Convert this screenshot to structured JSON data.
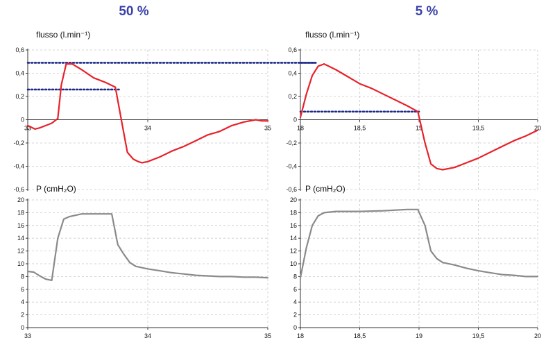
{
  "chart_data": [
    {
      "type": "line",
      "title": "50 %",
      "ylabel": "flusso (l.min⁻¹)",
      "xlim": [
        33,
        35
      ],
      "ylim": [
        -0.6,
        0.6
      ],
      "xticks": [
        33,
        34,
        35
      ],
      "xtick_labels": [
        "33",
        "34",
        "35"
      ],
      "yticks": [
        -0.6,
        -0.4,
        -0.2,
        0,
        0.2,
        0.4,
        0.6
      ],
      "ytick_labels": [
        "-0,6",
        "-0,4",
        "-0,2",
        "0",
        "0,2",
        "0,4",
        "0,6"
      ],
      "grid": "dashed",
      "x_axis_at": 0,
      "colors": {
        "series": "#e8212a",
        "reference": "#1d2a8a"
      },
      "series": [
        {
          "x": [
            33.0,
            33.06,
            33.1,
            33.15,
            33.2,
            33.25,
            33.28,
            33.32,
            33.37,
            33.45,
            33.55,
            33.65,
            33.73,
            33.78,
            33.83,
            33.88,
            33.92,
            33.95,
            34.0,
            34.1,
            34.2,
            34.3,
            34.4,
            34.5,
            34.6,
            34.7,
            34.8,
            34.9,
            34.95,
            35.0
          ],
          "y": [
            -0.05,
            -0.08,
            -0.07,
            -0.05,
            -0.03,
            0.01,
            0.3,
            0.48,
            0.48,
            0.43,
            0.36,
            0.32,
            0.28,
            0.0,
            -0.28,
            -0.34,
            -0.36,
            -0.37,
            -0.36,
            -0.32,
            -0.27,
            -0.23,
            -0.18,
            -0.13,
            -0.1,
            -0.05,
            -0.02,
            0.0,
            -0.01,
            -0.01
          ]
        }
      ],
      "reference_lines": [
        {
          "y": 0.49,
          "x_from": 33.0,
          "x_to": 35.4
        },
        {
          "y": 0.26,
          "x_from": 33.0,
          "x_to": 33.76
        }
      ]
    },
    {
      "type": "line",
      "title": "5 %",
      "ylabel": "flusso (l.min⁻¹)",
      "xlim": [
        18,
        20
      ],
      "ylim": [
        -0.6,
        0.6
      ],
      "xticks": [
        18,
        18.5,
        19,
        19.5,
        20
      ],
      "xtick_labels": [
        "18",
        "18,5",
        "19",
        "19,5",
        "20"
      ],
      "yticks": [
        -0.6,
        -0.4,
        -0.2,
        0,
        0.2,
        0.4,
        0.6
      ],
      "ytick_labels": [
        "-0,6",
        "-0,4",
        "-0,2",
        "0",
        "0,2",
        "0,4",
        "0,6"
      ],
      "grid": "dashed",
      "x_axis_at": 0,
      "colors": {
        "series": "#e8212a",
        "reference": "#1d2a8a"
      },
      "series": [
        {
          "x": [
            18.0,
            18.05,
            18.1,
            18.15,
            18.2,
            18.3,
            18.4,
            18.5,
            18.6,
            18.7,
            18.8,
            18.9,
            18.99,
            19.05,
            19.1,
            19.15,
            19.2,
            19.3,
            19.4,
            19.5,
            19.6,
            19.7,
            19.8,
            19.9,
            20.0
          ],
          "y": [
            0.02,
            0.22,
            0.38,
            0.46,
            0.48,
            0.43,
            0.37,
            0.31,
            0.27,
            0.22,
            0.17,
            0.12,
            0.07,
            -0.2,
            -0.38,
            -0.42,
            -0.43,
            -0.41,
            -0.37,
            -0.33,
            -0.28,
            -0.23,
            -0.18,
            -0.14,
            -0.09
          ]
        }
      ],
      "reference_lines": [
        {
          "y": 0.49,
          "x_from": 18.0,
          "x_to": 18.13
        },
        {
          "y": 0.07,
          "x_from": 18.0,
          "x_to": 19.0
        }
      ]
    },
    {
      "type": "line",
      "ylabel": "P (cmH₂O)",
      "xlim": [
        33,
        35
      ],
      "ylim": [
        0,
        20
      ],
      "xticks": [
        33,
        34,
        35
      ],
      "xtick_labels": [
        "33",
        "34",
        "35"
      ],
      "yticks": [
        0,
        2,
        4,
        6,
        8,
        10,
        12,
        14,
        16,
        18,
        20
      ],
      "ytick_labels": [
        "0",
        "2",
        "4",
        "6",
        "8",
        "10",
        "12",
        "14",
        "16",
        "18",
        "20"
      ],
      "grid": "dashed",
      "x_axis_at": 0,
      "colors": {
        "series": "#8a8a8a"
      },
      "series": [
        {
          "x": [
            33.0,
            33.05,
            33.1,
            33.15,
            33.2,
            33.25,
            33.3,
            33.35,
            33.4,
            33.45,
            33.5,
            33.6,
            33.7,
            33.75,
            33.8,
            33.85,
            33.9,
            34.0,
            34.1,
            34.2,
            34.3,
            34.4,
            34.5,
            34.6,
            34.7,
            34.8,
            34.9,
            35.0
          ],
          "y": [
            8.8,
            8.7,
            8.1,
            7.6,
            7.4,
            14.0,
            17.0,
            17.4,
            17.6,
            17.8,
            17.8,
            17.8,
            17.8,
            13.0,
            11.5,
            10.2,
            9.6,
            9.2,
            8.9,
            8.6,
            8.4,
            8.2,
            8.1,
            8.0,
            8.0,
            7.9,
            7.9,
            7.8
          ]
        }
      ]
    },
    {
      "type": "line",
      "ylabel": "P (cmH₂O)",
      "xlim": [
        18,
        20
      ],
      "ylim": [
        0,
        20
      ],
      "xticks": [
        18,
        18.5,
        19,
        19.5,
        20
      ],
      "xtick_labels": [
        "18",
        "18,5",
        "19",
        "19,5",
        "20"
      ],
      "yticks": [
        0,
        2,
        4,
        6,
        8,
        10,
        12,
        14,
        16,
        18,
        20
      ],
      "ytick_labels": [
        "0",
        "2",
        "4",
        "6",
        "8",
        "10",
        "12",
        "14",
        "16",
        "18",
        "20"
      ],
      "grid": "dashed",
      "x_axis_at": 0,
      "colors": {
        "series": "#8a8a8a"
      },
      "series": [
        {
          "x": [
            18.0,
            18.05,
            18.1,
            18.15,
            18.2,
            18.3,
            18.5,
            18.7,
            18.9,
            18.99,
            19.05,
            19.1,
            19.15,
            19.2,
            19.3,
            19.4,
            19.5,
            19.6,
            19.7,
            19.8,
            19.9,
            20.0
          ],
          "y": [
            7.8,
            12.5,
            16.0,
            17.5,
            18.0,
            18.2,
            18.2,
            18.3,
            18.5,
            18.5,
            16.0,
            12.0,
            10.8,
            10.2,
            9.8,
            9.3,
            8.9,
            8.6,
            8.3,
            8.2,
            8.0,
            8.0
          ]
        }
      ]
    }
  ]
}
